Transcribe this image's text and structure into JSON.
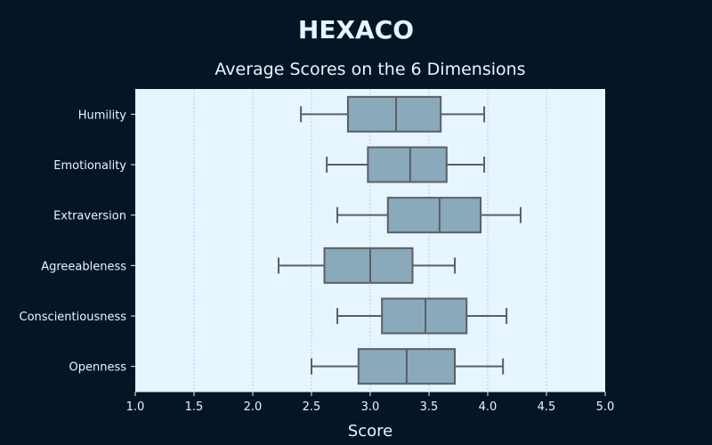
{
  "chart_data": {
    "type": "boxplot",
    "title": "HEXACO",
    "subtitle": "Average Scores on the 6 Dimensions",
    "xlabel": "Score",
    "ylabel": "",
    "xlim": [
      1.0,
      5.0
    ],
    "x_ticks": [
      "1.0",
      "1.5",
      "2.0",
      "2.5",
      "3.0",
      "3.5",
      "4.0",
      "4.5",
      "5.0"
    ],
    "grid": "vertical",
    "orientation": "horizontal",
    "categories": [
      "Humility",
      "Emotionality",
      "Extraversion",
      "Agreeableness",
      "Conscientiousness",
      "Openness"
    ],
    "boxes": [
      {
        "label": "Humility",
        "min": 2.41,
        "q1": 2.81,
        "median": 3.22,
        "q3": 3.6,
        "max": 3.97
      },
      {
        "label": "Emotionality",
        "min": 2.63,
        "q1": 2.98,
        "median": 3.34,
        "q3": 3.65,
        "max": 3.97
      },
      {
        "label": "Extraversion",
        "min": 2.72,
        "q1": 3.15,
        "median": 3.59,
        "q3": 3.94,
        "max": 4.28
      },
      {
        "label": "Agreeableness",
        "min": 2.22,
        "q1": 2.61,
        "median": 3.0,
        "q3": 3.36,
        "max": 3.72
      },
      {
        "label": "Conscientiousness",
        "min": 2.72,
        "q1": 3.1,
        "median": 3.47,
        "q3": 3.82,
        "max": 4.16
      },
      {
        "label": "Openness",
        "min": 2.5,
        "q1": 2.9,
        "median": 3.31,
        "q3": 3.72,
        "max": 4.13
      }
    ],
    "colors": {
      "background": "#051526",
      "plot_background": "#e6f5ff",
      "box_fill": "#8aa9bb",
      "box_stroke": "#5a5f66",
      "grid": "#b7c4cc",
      "text": "#e8f4ff"
    }
  }
}
